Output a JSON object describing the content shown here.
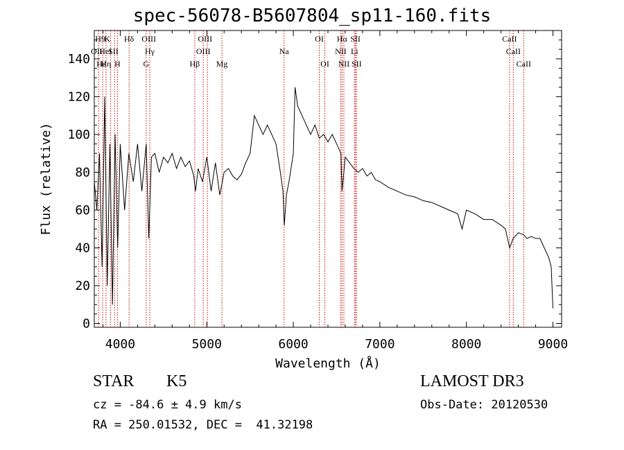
{
  "chart_data": {
    "type": "line",
    "title": "spec-56078-B5607804_sp11-160.fits",
    "xlabel": "Wavelength (Å)",
    "ylabel": "Flux (relative)",
    "xlim": [
      3700,
      9100
    ],
    "ylim": [
      -2,
      155
    ],
    "xticks": [
      4000,
      5000,
      6000,
      7000,
      8000,
      9000
    ],
    "yticks": [
      0,
      20,
      40,
      60,
      80,
      100,
      120,
      140
    ],
    "grid": false,
    "series": [
      {
        "name": "spectrum",
        "x": [
          3700,
          3730,
          3760,
          3790,
          3820,
          3850,
          3880,
          3910,
          3940,
          3970,
          4000,
          4050,
          4100,
          4150,
          4200,
          4250,
          4300,
          4330,
          4360,
          4400,
          4450,
          4500,
          4550,
          4600,
          4650,
          4700,
          4750,
          4800,
          4850,
          4870,
          4900,
          4950,
          5000,
          5050,
          5100,
          5150,
          5180,
          5200,
          5250,
          5300,
          5350,
          5400,
          5450,
          5500,
          5550,
          5600,
          5650,
          5700,
          5750,
          5800,
          5850,
          5880,
          5895,
          5920,
          5950,
          6000,
          6020,
          6050,
          6100,
          6150,
          6200,
          6250,
          6300,
          6350,
          6400,
          6450,
          6500,
          6550,
          6563,
          6600,
          6650,
          6700,
          6750,
          6800,
          6850,
          6900,
          6950,
          7000,
          7100,
          7200,
          7300,
          7400,
          7500,
          7600,
          7700,
          7800,
          7900,
          7950,
          8000,
          8100,
          8200,
          8300,
          8400,
          8450,
          8500,
          8540,
          8600,
          8660,
          8700,
          8750,
          8800,
          8850,
          8900,
          8950,
          8980,
          9000
        ],
        "values": [
          75,
          60,
          90,
          30,
          120,
          20,
          95,
          10,
          100,
          40,
          95,
          60,
          90,
          75,
          95,
          70,
          95,
          45,
          88,
          90,
          80,
          88,
          85,
          90,
          82,
          88,
          83,
          86,
          78,
          70,
          82,
          75,
          88,
          70,
          85,
          68,
          75,
          80,
          82,
          78,
          76,
          79,
          85,
          90,
          110,
          105,
          100,
          105,
          100,
          95,
          80,
          70,
          52,
          68,
          75,
          90,
          125,
          115,
          110,
          105,
          100,
          105,
          98,
          100,
          96,
          100,
          95,
          90,
          70,
          88,
          85,
          82,
          80,
          82,
          78,
          80,
          76,
          75,
          72,
          70,
          68,
          67,
          65,
          64,
          62,
          60,
          58,
          50,
          60,
          58,
          55,
          55,
          52,
          50,
          40,
          45,
          48,
          47,
          45,
          46,
          45,
          45,
          40,
          35,
          30,
          8
        ]
      }
    ],
    "lines": [
      {
        "wl": 3750,
        "label": "H9",
        "row": 0
      },
      {
        "wl": 3797,
        "label": "K",
        "row": 0
      },
      {
        "wl": 3835,
        "label": "",
        "row": 0
      },
      {
        "wl": 3889,
        "label": "",
        "row": 0
      },
      {
        "wl": 3934,
        "label": "",
        "row": 0
      },
      {
        "wl": 3968,
        "label": "",
        "row": 0
      },
      {
        "wl": 4102,
        "label": "Hδ",
        "row": 0
      },
      {
        "wl": 4300,
        "label": "OIII",
        "row": 0
      },
      {
        "wl": 4341,
        "label": "",
        "row": 0
      },
      {
        "wl": 4861,
        "label": "",
        "row": 0
      },
      {
        "wl": 4959,
        "label": "OIII",
        "row": 0
      },
      {
        "wl": 5007,
        "label": "",
        "row": 0
      },
      {
        "wl": 5175,
        "label": "",
        "row": 0
      },
      {
        "wl": 5893,
        "label": "",
        "row": 0
      },
      {
        "wl": 6300,
        "label": "OI",
        "row": 0
      },
      {
        "wl": 6364,
        "label": "",
        "row": 0
      },
      {
        "wl": 6548,
        "label": "",
        "row": 0
      },
      {
        "wl": 6563,
        "label": "Hα",
        "row": 0
      },
      {
        "wl": 6584,
        "label": "",
        "row": 0
      },
      {
        "wl": 6707,
        "label": "SII",
        "row": 0
      },
      {
        "wl": 6717,
        "label": "",
        "row": 0
      },
      {
        "wl": 6731,
        "label": "",
        "row": 0
      },
      {
        "wl": 8498,
        "label": "CaII",
        "row": 0
      },
      {
        "wl": 8542,
        "label": "",
        "row": 0
      },
      {
        "wl": 8662,
        "label": "",
        "row": 0
      }
    ],
    "line_labels": [
      {
        "label": "H9",
        "wl": 3770,
        "row": 0
      },
      {
        "label": "K",
        "wl": 3850,
        "row": 0
      },
      {
        "label": "Hδ",
        "wl": 4102,
        "row": 0
      },
      {
        "label": "OIII",
        "wl": 4330,
        "row": 0
      },
      {
        "label": "OIII",
        "wl": 4980,
        "row": 0
      },
      {
        "label": "OI",
        "wl": 6300,
        "row": 0
      },
      {
        "label": "Hα",
        "wl": 6563,
        "row": 0
      },
      {
        "label": "SII",
        "wl": 6717,
        "row": 0
      },
      {
        "label": "CaII",
        "wl": 8498,
        "row": 0
      },
      {
        "label": "OII",
        "wl": 3727,
        "row": 1
      },
      {
        "label": "HeI",
        "wl": 3830,
        "row": 1
      },
      {
        "label": "SII",
        "wl": 3920,
        "row": 1
      },
      {
        "label": "Hγ",
        "wl": 4341,
        "row": 1
      },
      {
        "label": "OIII",
        "wl": 4959,
        "row": 1
      },
      {
        "label": "Na",
        "wl": 5893,
        "row": 1
      },
      {
        "label": "NII",
        "wl": 6548,
        "row": 1
      },
      {
        "label": "Li",
        "wl": 6707,
        "row": 1
      },
      {
        "label": "CaII",
        "wl": 8542,
        "row": 1
      },
      {
        "label": "Hε",
        "wl": 3780,
        "row": 2
      },
      {
        "label": "Hη",
        "wl": 3835,
        "row": 2
      },
      {
        "label": "H",
        "wl": 3968,
        "row": 2
      },
      {
        "label": "G",
        "wl": 4300,
        "row": 2
      },
      {
        "label": "Hβ",
        "wl": 4861,
        "row": 2
      },
      {
        "label": "Mg",
        "wl": 5175,
        "row": 2
      },
      {
        "label": "OI",
        "wl": 6364,
        "row": 2
      },
      {
        "label": "NII",
        "wl": 6584,
        "row": 2
      },
      {
        "label": "SII",
        "wl": 6731,
        "row": 2
      },
      {
        "label": "CaII",
        "wl": 8662,
        "row": 2
      }
    ],
    "line_color": "#cc0000",
    "series_color": "#000000"
  },
  "info": {
    "object_class": "STAR",
    "subclass": "K5",
    "survey": "LAMOST DR3",
    "redshift": "cz = -84.6 ± 4.9 km/s",
    "obs_date": "Obs-Date: 20120530",
    "coords": "RA = 250.01532, DEC =  41.32198"
  }
}
